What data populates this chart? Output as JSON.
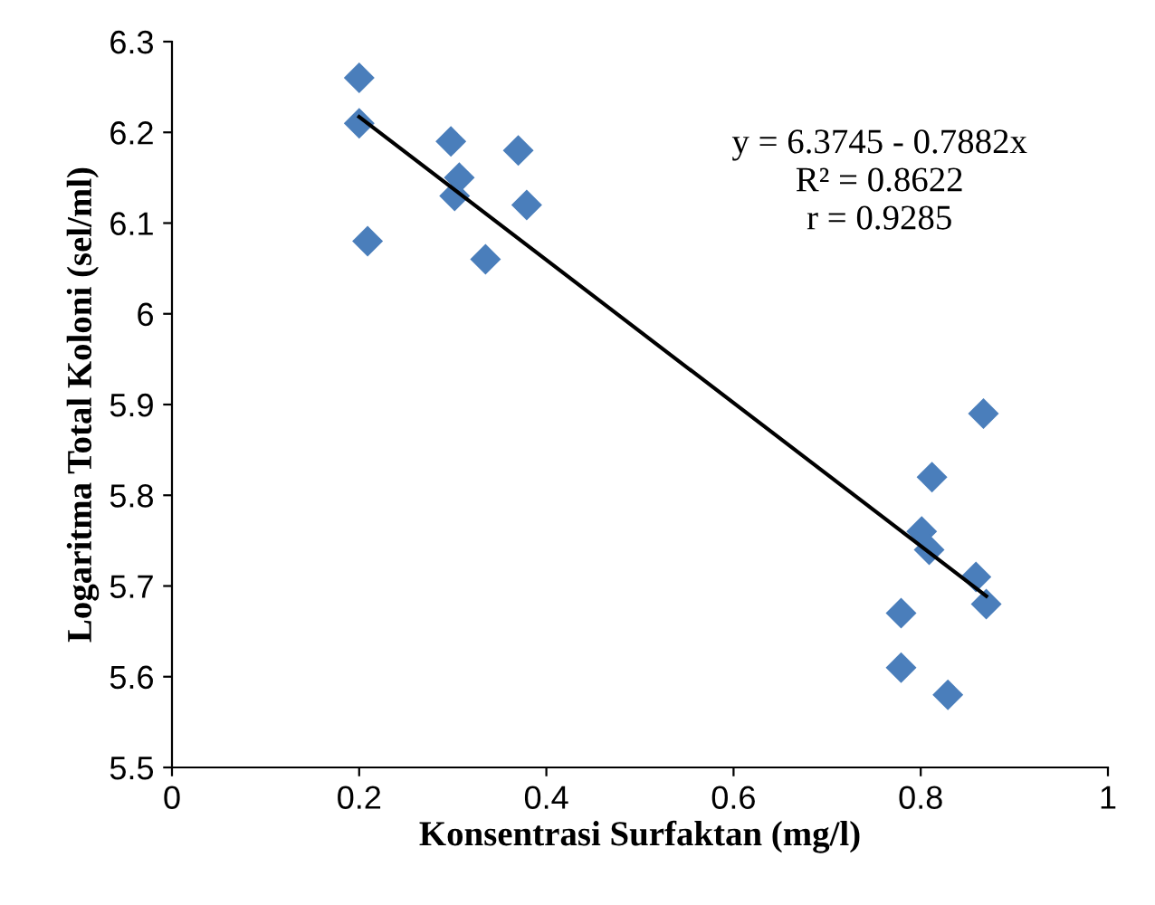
{
  "chart_data": {
    "type": "scatter",
    "xlabel": "Konsentrasi Surfaktan (mg/l)",
    "ylabel": "Logaritma Total Koloni (sel/ml)",
    "xlim": [
      0,
      1
    ],
    "xticks": [
      0,
      0.2,
      0.4,
      0.6,
      0.8,
      1
    ],
    "ylim": [
      5.5,
      6.3
    ],
    "yticks": [
      5.5,
      5.6,
      5.7,
      5.8,
      5.9,
      6,
      6.1,
      6.2,
      6.3
    ],
    "grid": false,
    "legend": false,
    "series": [
      {
        "marker": "diamond",
        "color": "#4a7ebb",
        "x": [
          0.2,
          0.2,
          0.209,
          0.298,
          0.307,
          0.302,
          0.37,
          0.379,
          0.335,
          0.812,
          0.867,
          0.801,
          0.809,
          0.859,
          0.87,
          0.779,
          0.779,
          0.829
        ],
        "values": [
          6.26,
          6.21,
          6.08,
          6.19,
          6.15,
          6.13,
          6.18,
          6.12,
          6.06,
          5.82,
          5.89,
          5.76,
          5.74,
          5.71,
          5.68,
          5.67,
          5.61,
          5.58
        ]
      },
      {
        "type": "line",
        "marker": "none",
        "color": "#000000",
        "x": [
          0.2,
          0.87
        ],
        "values": [
          6.217,
          5.689
        ]
      }
    ],
    "annotations": [
      "y = 6.3745 - 0.7882x",
      "R² = 0.8622",
      "r = 0.9285"
    ]
  }
}
